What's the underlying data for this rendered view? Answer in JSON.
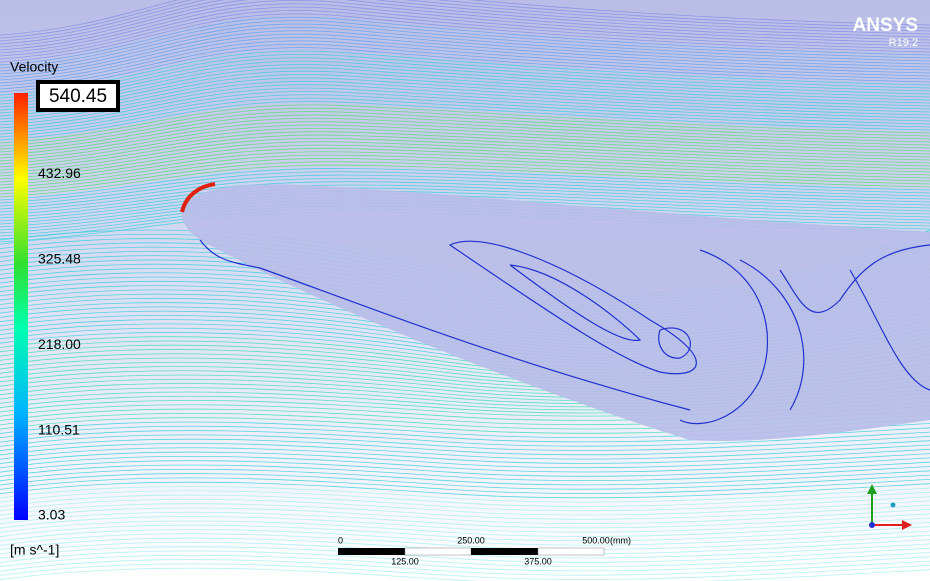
{
  "logo": {
    "name": "ANSYS",
    "version": "R19.2"
  },
  "legend": {
    "title": "Velocity",
    "max": "540.45",
    "ticks": [
      "432.96",
      "325.48",
      "218.00",
      "110.51",
      "3.03"
    ],
    "unit": "[m s^-1]"
  },
  "scale_bar": {
    "top_labels": [
      "0",
      "250.00",
      "500.00"
    ],
    "unit": "(mm)",
    "bottom_labels": [
      "125.00",
      "375.00"
    ]
  }
}
